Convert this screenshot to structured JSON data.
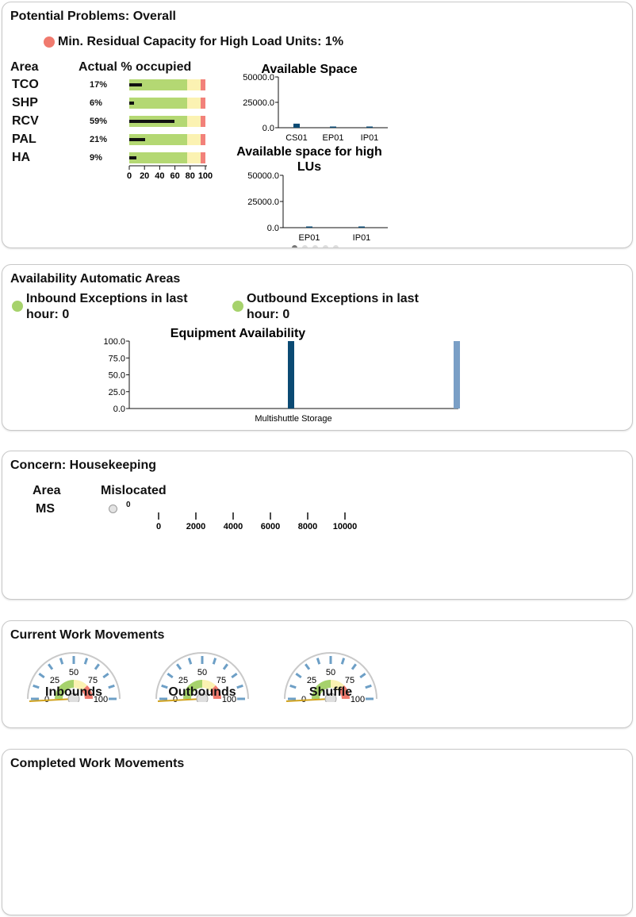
{
  "overall": {
    "title": "Potential Problems: Overall",
    "alert": "Min. Residual Capacity for High Load Units: 1%",
    "area_header": "Area",
    "occupied_header": "Actual % occupied",
    "rows": [
      {
        "area": "TCO",
        "pct": "17%",
        "value": 17
      },
      {
        "area": "SHP",
        "pct": "6%",
        "value": 6
      },
      {
        "area": "RCV",
        "pct": "59%",
        "value": 59
      },
      {
        "area": "PAL",
        "pct": "21%",
        "value": 21
      },
      {
        "area": "HA",
        "pct": "9%",
        "value": 9
      }
    ],
    "axis_ticks": [
      "0",
      "20",
      "40",
      "60",
      "80",
      "100"
    ]
  },
  "availability": {
    "title": "Availability Automatic Areas",
    "inbound": "Inbound Exceptions in last hour: 0",
    "outbound": "Outbound Exceptions in last hour: 0"
  },
  "housekeeping": {
    "title": "Concern: Housekeeping",
    "area_header": "Area",
    "mislocated_header": "Mislocated",
    "row_area": "MS",
    "row_value": "0",
    "axis_ticks": [
      "0",
      "2000",
      "4000",
      "6000",
      "8000",
      "10000"
    ]
  },
  "current": {
    "title": "Current Work Movements",
    "gauges": [
      {
        "label": "Inbounds",
        "value": 0
      },
      {
        "label": "Outbounds",
        "value": 0
      },
      {
        "label": "Shuffle",
        "value": 0
      }
    ],
    "gauge_ticks": [
      "0",
      "25",
      "50",
      "75",
      "100"
    ]
  },
  "completed": {
    "title": "Completed Work Movements"
  },
  "chart_data": [
    {
      "type": "bar",
      "title": "Available Space",
      "categories": [
        "CS01",
        "EP01",
        "IP01"
      ],
      "values": [
        4000,
        400,
        300
      ],
      "yticks": [
        "0.0",
        "25000.0",
        "50000.0"
      ],
      "ylim": [
        0,
        50000
      ]
    },
    {
      "type": "bar",
      "title": "Available space for high LUs",
      "categories": [
        "EP01",
        "IP01"
      ],
      "values": [
        500,
        600
      ],
      "yticks": [
        "0.0",
        "25000.0",
        "50000.0"
      ],
      "ylim": [
        0,
        50000
      ]
    },
    {
      "type": "bar",
      "title": "Equipment Availability",
      "categories": [
        "Multishuttle Storage"
      ],
      "series": [
        {
          "values": [
            100
          ]
        },
        {
          "values": [
            100
          ]
        }
      ],
      "colors": [
        "#0b4a73",
        "#7a9fc6"
      ],
      "yticks": [
        "0.0",
        "25.0",
        "50.0",
        "75.0",
        "100.0"
      ],
      "ylim": [
        0,
        100
      ]
    }
  ]
}
